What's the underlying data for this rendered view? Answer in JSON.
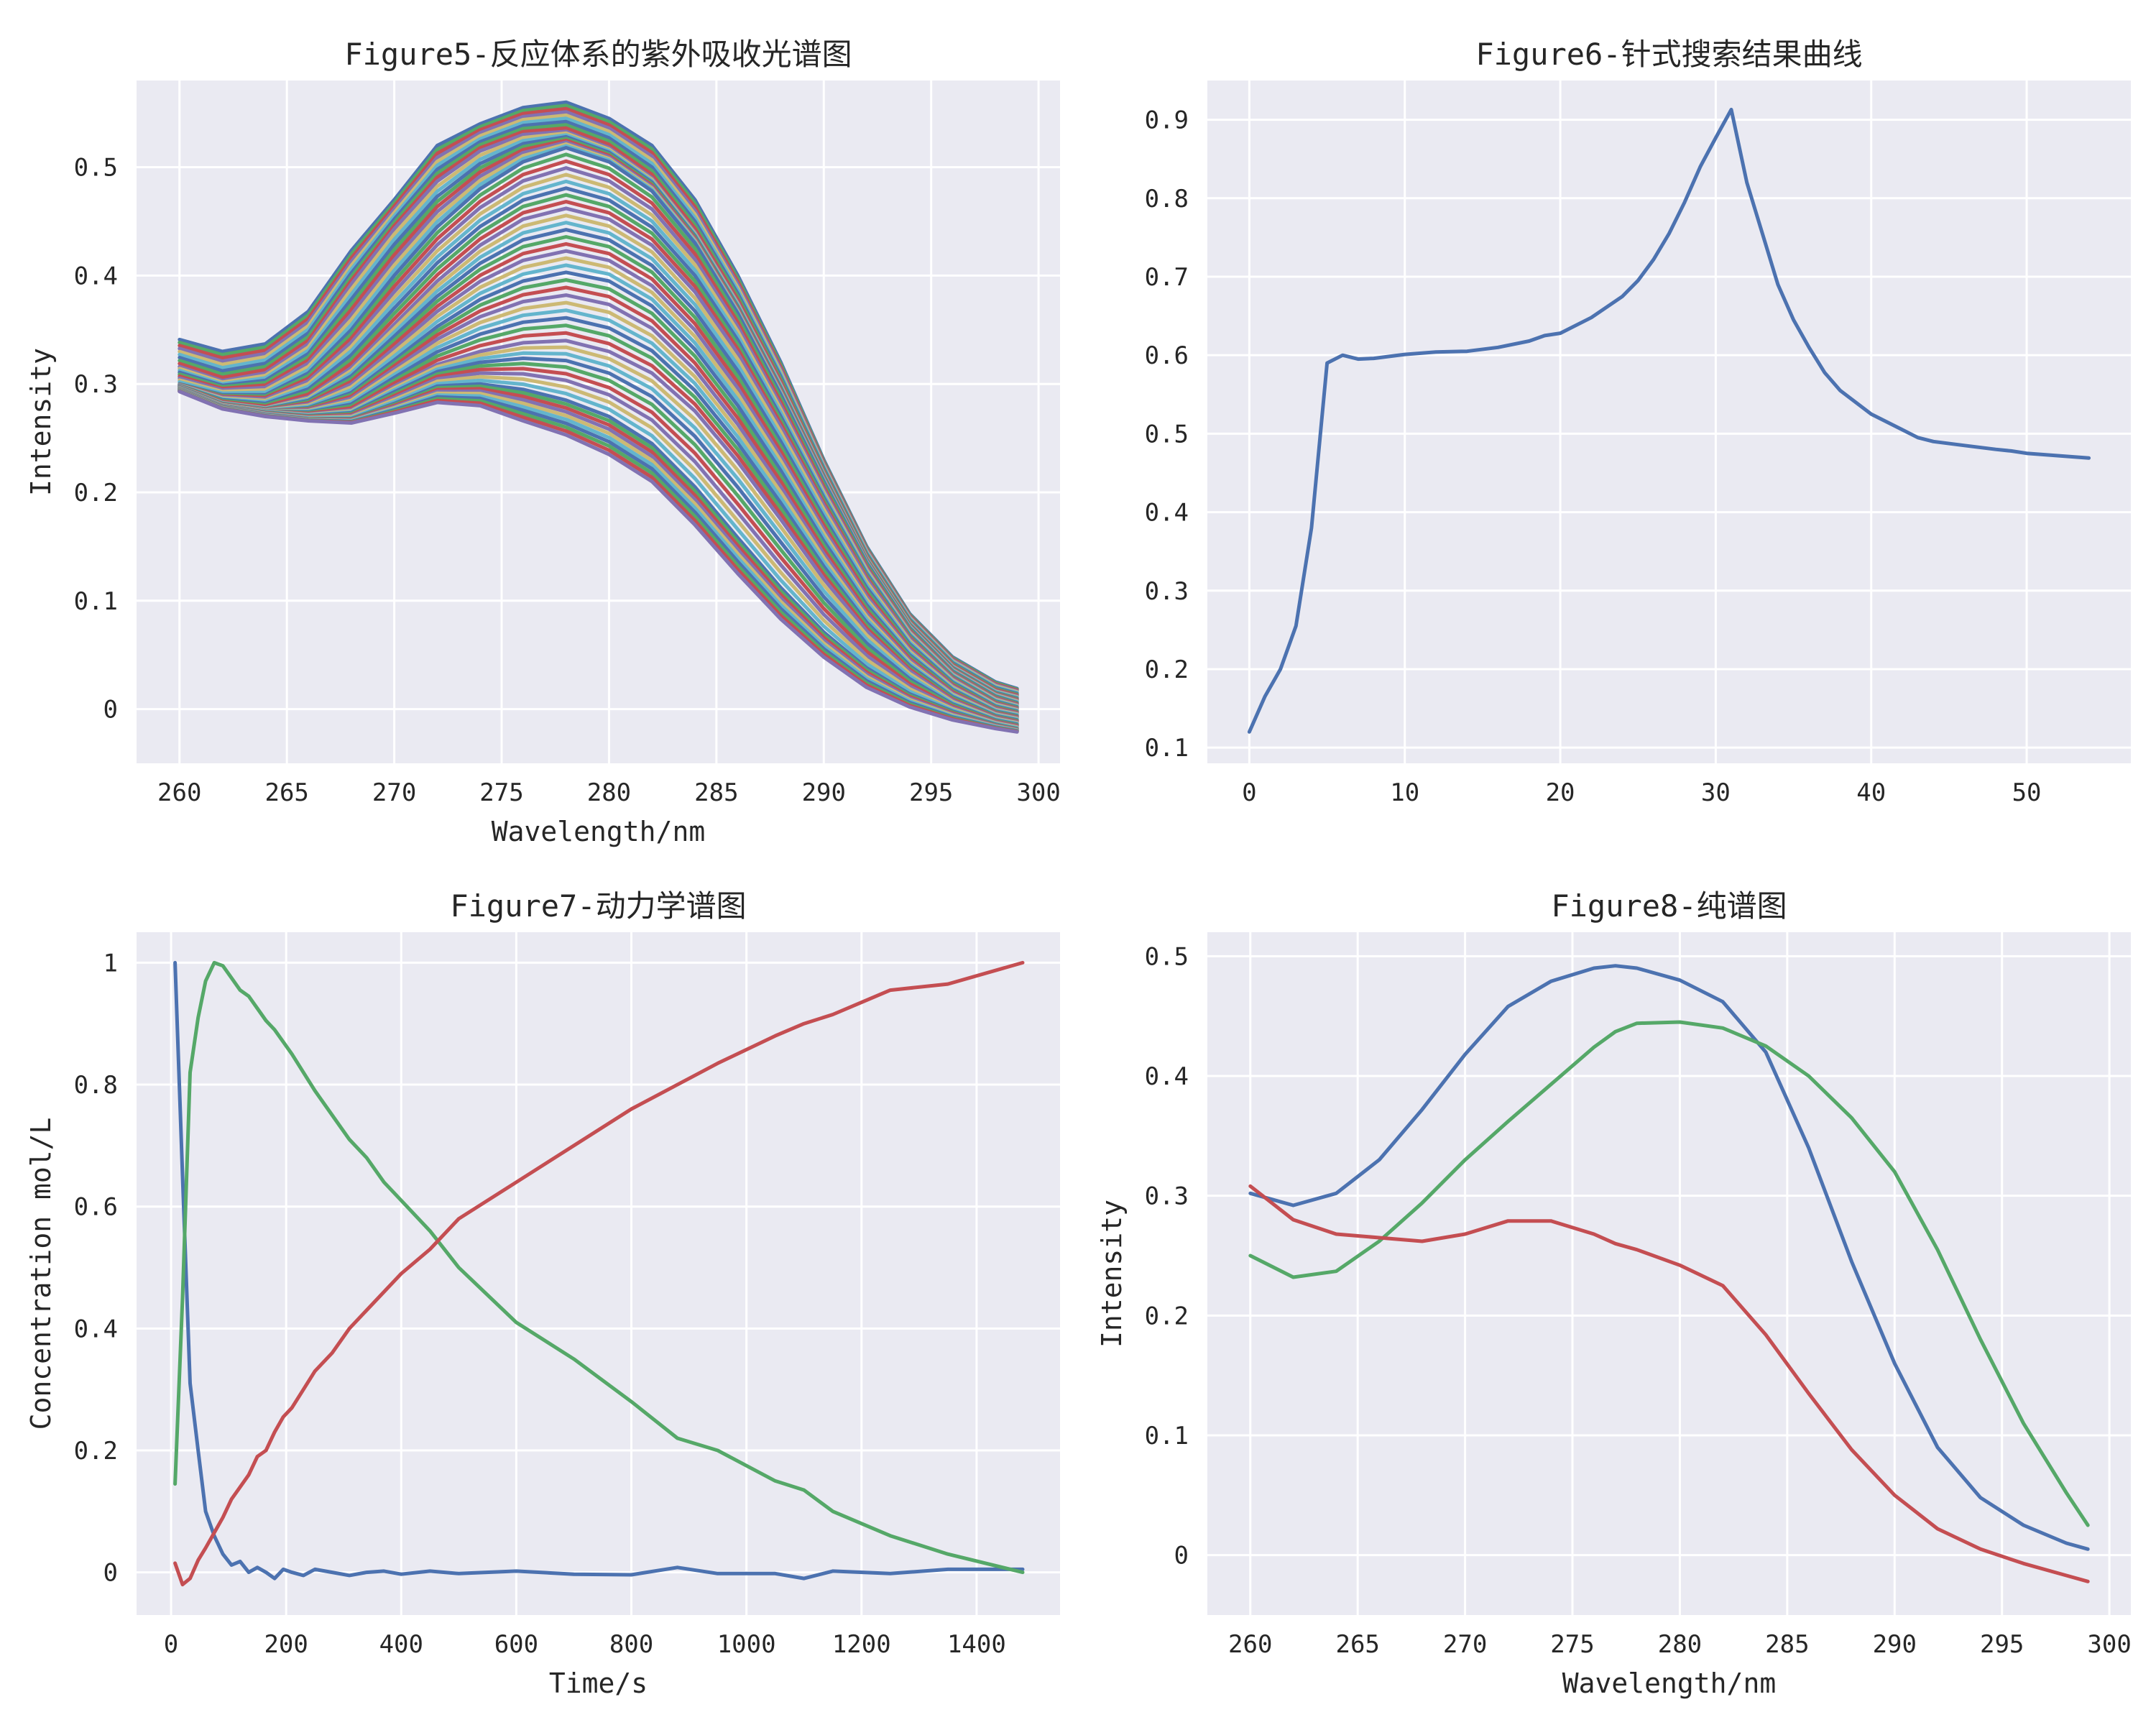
{
  "chart_data": [
    {
      "type": "line",
      "title": "Figure5-反应体系的紫外吸收光谱图",
      "xlabel": "Wavelength/nm",
      "ylabel": "Intensity",
      "xlim": [
        258,
        301
      ],
      "ylim": [
        -0.05,
        0.58
      ],
      "xticks": [
        260,
        265,
        270,
        275,
        280,
        285,
        290,
        295,
        300
      ],
      "yticks": [
        0.0,
        0.1,
        0.2,
        0.3,
        0.4,
        0.5
      ],
      "grid": true,
      "colors": [
        "#4c72b0",
        "#55a868",
        "#c44e52",
        "#8172b2",
        "#ccb974",
        "#64b5cd"
      ],
      "x": [
        260,
        262,
        264,
        266,
        268,
        270,
        272,
        274,
        276,
        278,
        280,
        282,
        284,
        286,
        288,
        290,
        292,
        294,
        296,
        298,
        299
      ],
      "series": [
        {
          "values": [
            0.341,
            0.33,
            0.337,
            0.367,
            0.423,
            0.47,
            0.52,
            0.54,
            0.555,
            0.56,
            0.545,
            0.52,
            0.47,
            0.4,
            0.32,
            0.23,
            0.15,
            0.088,
            0.048,
            0.025,
            0.019
          ]
        },
        {
          "values": [
            0.316,
            0.303,
            0.31,
            0.337,
            0.392,
            0.443,
            0.487,
            0.515,
            0.53,
            0.533,
            0.518,
            0.49,
            0.44,
            0.375,
            0.3,
            0.218,
            0.14,
            0.08,
            0.04,
            0.017,
            0.012
          ]
        },
        {
          "values": [
            0.3,
            0.29,
            0.29,
            0.31,
            0.35,
            0.4,
            0.445,
            0.48,
            0.505,
            0.518,
            0.505,
            0.478,
            0.43,
            0.365,
            0.29,
            0.21,
            0.135,
            0.075,
            0.035,
            0.012,
            0.006
          ]
        },
        {
          "values": [
            0.298,
            0.283,
            0.278,
            0.288,
            0.315,
            0.355,
            0.395,
            0.428,
            0.452,
            0.462,
            0.452,
            0.428,
            0.385,
            0.328,
            0.26,
            0.188,
            0.12,
            0.065,
            0.028,
            0.005,
            0.0
          ]
        },
        {
          "values": [
            0.296,
            0.28,
            0.275,
            0.278,
            0.292,
            0.322,
            0.353,
            0.378,
            0.395,
            0.403,
            0.395,
            0.372,
            0.332,
            0.28,
            0.22,
            0.155,
            0.096,
            0.05,
            0.018,
            -0.002,
            -0.006
          ]
        },
        {
          "values": [
            0.295,
            0.28,
            0.275,
            0.272,
            0.276,
            0.298,
            0.318,
            0.33,
            0.338,
            0.34,
            0.33,
            0.31,
            0.275,
            0.228,
            0.175,
            0.12,
            0.072,
            0.035,
            0.008,
            -0.008,
            -0.012
          ]
        },
        {
          "values": [
            0.294,
            0.279,
            0.272,
            0.268,
            0.268,
            0.282,
            0.298,
            0.3,
            0.295,
            0.285,
            0.27,
            0.245,
            0.205,
            0.158,
            0.112,
            0.071,
            0.038,
            0.014,
            -0.002,
            -0.014,
            -0.018
          ]
        },
        {
          "values": [
            0.293,
            0.277,
            0.27,
            0.266,
            0.264,
            0.273,
            0.283,
            0.28,
            0.266,
            0.253,
            0.235,
            0.21,
            0.17,
            0.125,
            0.083,
            0.048,
            0.02,
            0.002,
            -0.01,
            -0.018,
            -0.021
          ]
        }
      ]
    },
    {
      "type": "line",
      "title": "Figure6-针式搜索结果曲线",
      "xlabel": "",
      "ylabel": "",
      "xlim": [
        -2.7,
        56.7
      ],
      "ylim": [
        0.08,
        0.95
      ],
      "xticks": [
        0,
        10,
        20,
        30,
        40,
        50
      ],
      "yticks": [
        0.1,
        0.2,
        0.3,
        0.4,
        0.5,
        0.6,
        0.7,
        0.8,
        0.9
      ],
      "grid": true,
      "colors": [
        "#4c72b0"
      ],
      "x": [
        0,
        1,
        2,
        3,
        4,
        5,
        6,
        7,
        8,
        10,
        12,
        14,
        16,
        18,
        19,
        20,
        22,
        24,
        25,
        26,
        27,
        28,
        29,
        30,
        31,
        32,
        33,
        34,
        35,
        36,
        37,
        38,
        40,
        42,
        43,
        44,
        46,
        48,
        49,
        50,
        52,
        54
      ],
      "series": [
        {
          "values": [
            0.12,
            0.165,
            0.2,
            0.255,
            0.38,
            0.59,
            0.6,
            0.595,
            0.596,
            0.601,
            0.604,
            0.605,
            0.61,
            0.618,
            0.625,
            0.628,
            0.648,
            0.675,
            0.695,
            0.722,
            0.755,
            0.795,
            0.84,
            0.877,
            0.913,
            0.82,
            0.755,
            0.69,
            0.645,
            0.61,
            0.578,
            0.555,
            0.525,
            0.505,
            0.495,
            0.49,
            0.485,
            0.48,
            0.478,
            0.475,
            0.472,
            0.469
          ]
        }
      ]
    },
    {
      "type": "line",
      "title": "Figure7-动力学谱图",
      "xlabel": "Time/s",
      "ylabel": "Concentration mol/L",
      "xlim": [
        -60,
        1545
      ],
      "ylim": [
        -0.07,
        1.05
      ],
      "xticks": [
        0,
        200,
        400,
        600,
        800,
        1000,
        1200,
        1400
      ],
      "yticks": [
        0.0,
        0.2,
        0.4,
        0.6,
        0.8,
        1.0
      ],
      "grid": true,
      "colors": [
        "#4c72b0",
        "#55a868",
        "#c44e52"
      ],
      "series": [
        {
          "x": [
            7,
            20,
            33,
            47,
            60,
            75,
            90,
            105,
            120,
            135,
            150,
            165,
            180,
            195,
            210,
            230,
            250,
            280,
            310,
            340,
            370,
            400,
            450,
            500,
            600,
            700,
            800,
            880,
            950,
            1050,
            1100,
            1150,
            1250,
            1350,
            1480
          ],
          "values": [
            1.0,
            0.65,
            0.31,
            0.2,
            0.1,
            0.06,
            0.03,
            0.012,
            0.018,
            0.0,
            0.008,
            0.0,
            -0.01,
            0.005,
            0.0,
            -0.005,
            0.005,
            0.0,
            -0.005,
            0.0,
            0.002,
            -0.003,
            0.002,
            -0.002,
            0.002,
            -0.003,
            -0.004,
            0.008,
            -0.002,
            -0.002,
            -0.01,
            0.002,
            -0.002,
            0.005,
            0.005
          ]
        },
        {
          "x": [
            7,
            20,
            33,
            47,
            60,
            75,
            90,
            105,
            120,
            135,
            150,
            165,
            180,
            195,
            210,
            230,
            250,
            280,
            310,
            340,
            370,
            400,
            450,
            500,
            600,
            700,
            800,
            880,
            950,
            1050,
            1100,
            1150,
            1250,
            1350,
            1480
          ],
          "values": [
            0.145,
            0.45,
            0.82,
            0.91,
            0.97,
            1.0,
            0.995,
            0.975,
            0.955,
            0.945,
            0.925,
            0.905,
            0.89,
            0.87,
            0.85,
            0.82,
            0.79,
            0.75,
            0.71,
            0.68,
            0.64,
            0.61,
            0.56,
            0.5,
            0.41,
            0.35,
            0.28,
            0.22,
            0.2,
            0.15,
            0.135,
            0.1,
            0.06,
            0.03,
            0.0
          ]
        },
        {
          "x": [
            7,
            20,
            33,
            47,
            60,
            75,
            90,
            105,
            120,
            135,
            150,
            165,
            180,
            195,
            210,
            230,
            250,
            280,
            310,
            340,
            370,
            400,
            450,
            500,
            600,
            700,
            800,
            880,
            950,
            1050,
            1100,
            1150,
            1250,
            1350,
            1480
          ],
          "values": [
            0.015,
            -0.02,
            -0.01,
            0.02,
            0.04,
            0.065,
            0.09,
            0.12,
            0.14,
            0.16,
            0.19,
            0.2,
            0.23,
            0.255,
            0.27,
            0.3,
            0.33,
            0.36,
            0.4,
            0.43,
            0.46,
            0.49,
            0.53,
            0.58,
            0.64,
            0.7,
            0.76,
            0.8,
            0.835,
            0.88,
            0.9,
            0.915,
            0.955,
            0.965,
            1.0
          ]
        }
      ]
    },
    {
      "type": "line",
      "title": "Figure8-纯谱图",
      "xlabel": "Wavelength/nm",
      "ylabel": "Intensity",
      "xlim": [
        258,
        301
      ],
      "ylim": [
        -0.05,
        0.52
      ],
      "xticks": [
        260,
        265,
        270,
        275,
        280,
        285,
        290,
        295,
        300
      ],
      "yticks": [
        0.0,
        0.1,
        0.2,
        0.3,
        0.4,
        0.5
      ],
      "grid": true,
      "colors": [
        "#4c72b0",
        "#55a868",
        "#c44e52"
      ],
      "x": [
        260,
        262,
        264,
        266,
        268,
        270,
        272,
        274,
        276,
        277,
        278,
        280,
        282,
        284,
        286,
        288,
        290,
        292,
        294,
        296,
        298,
        299
      ],
      "series": [
        {
          "values": [
            0.302,
            0.292,
            0.302,
            0.33,
            0.372,
            0.418,
            0.458,
            0.479,
            0.49,
            0.492,
            0.49,
            0.48,
            0.462,
            0.42,
            0.34,
            0.245,
            0.16,
            0.09,
            0.048,
            0.025,
            0.01,
            0.005
          ]
        },
        {
          "values": [
            0.25,
            0.232,
            0.237,
            0.262,
            0.294,
            0.33,
            0.362,
            0.393,
            0.424,
            0.437,
            0.444,
            0.445,
            0.44,
            0.425,
            0.4,
            0.365,
            0.32,
            0.255,
            0.18,
            0.11,
            0.052,
            0.025
          ]
        },
        {
          "values": [
            0.308,
            0.28,
            0.268,
            0.265,
            0.262,
            0.268,
            0.279,
            0.279,
            0.268,
            0.26,
            0.255,
            0.242,
            0.225,
            0.184,
            0.135,
            0.088,
            0.05,
            0.022,
            0.005,
            -0.007,
            -0.017,
            -0.022
          ]
        }
      ]
    }
  ]
}
